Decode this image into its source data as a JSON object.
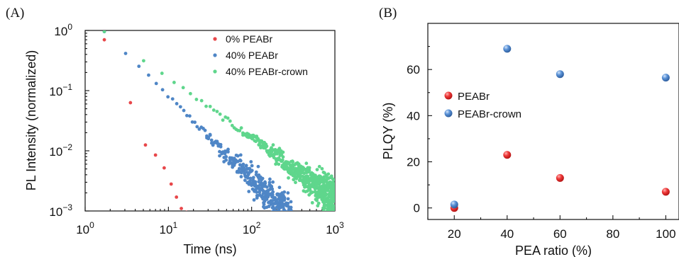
{
  "chart_data": [
    {
      "type": "scatter",
      "panel_label": "(A)",
      "xlabel": "Time (ns)",
      "ylabel": "PL Intensity (normalized)",
      "xscale": "log",
      "yscale": "log",
      "xlim": [
        1,
        1000
      ],
      "ylim": [
        0.001,
        1
      ],
      "x_ticks": [
        {
          "value": 1,
          "base": "10",
          "exp": "0"
        },
        {
          "value": 10,
          "base": "10",
          "exp": "1"
        },
        {
          "value": 100,
          "base": "10",
          "exp": "2"
        },
        {
          "value": 1000,
          "base": "10",
          "exp": "3"
        }
      ],
      "y_ticks": [
        {
          "value": 1,
          "base": "10",
          "exp": "0"
        },
        {
          "value": 0.1,
          "base": "10",
          "exp": "−1"
        },
        {
          "value": 0.01,
          "base": "10",
          "exp": "−2"
        },
        {
          "value": 0.001,
          "base": "10",
          "exp": "−3"
        }
      ],
      "legend_position": "top-right",
      "series": [
        {
          "name": "0% PEABr",
          "color": "#e8474a",
          "x": [
            1.7,
            3.5,
            5.3,
            7.0,
            8.9,
            10.8,
            12.5,
            14.3,
            16.5
          ],
          "y": [
            0.7,
            0.063,
            0.0125,
            0.0085,
            0.0052,
            0.0028,
            0.0017,
            0.0011,
            0.00095
          ]
        },
        {
          "name": "40% PEABr",
          "color": "#4f86c6",
          "decay": {
            "x0": 1.7,
            "y0": 0.95,
            "slope": -1.39,
            "x_end": 300,
            "n": 220
          }
        },
        {
          "name": "40% PEABr-crown",
          "color": "#5fd68c",
          "decay": {
            "x0": 1.7,
            "y0": 0.95,
            "slope": -1.0,
            "x_end": 1000,
            "n": 300
          }
        }
      ]
    },
    {
      "type": "scatter",
      "panel_label": "(B)",
      "xlabel": "PEA ratio (%)",
      "ylabel": "PLQY (%)",
      "xlim": [
        10,
        105
      ],
      "ylim": [
        -5,
        80
      ],
      "x_ticks": [
        20,
        40,
        60,
        80,
        100
      ],
      "y_ticks": [
        0,
        20,
        40,
        60
      ],
      "legend_position": "center-left",
      "series": [
        {
          "name": "PEABr",
          "color": "#e8474a",
          "x": [
            20,
            40,
            60,
            100
          ],
          "y": [
            0,
            23,
            13,
            7
          ]
        },
        {
          "name": "PEABr-crown",
          "color": "#4f86c6",
          "x": [
            20,
            40,
            60,
            100
          ],
          "y": [
            1.5,
            69,
            58,
            56.5
          ]
        }
      ]
    }
  ]
}
